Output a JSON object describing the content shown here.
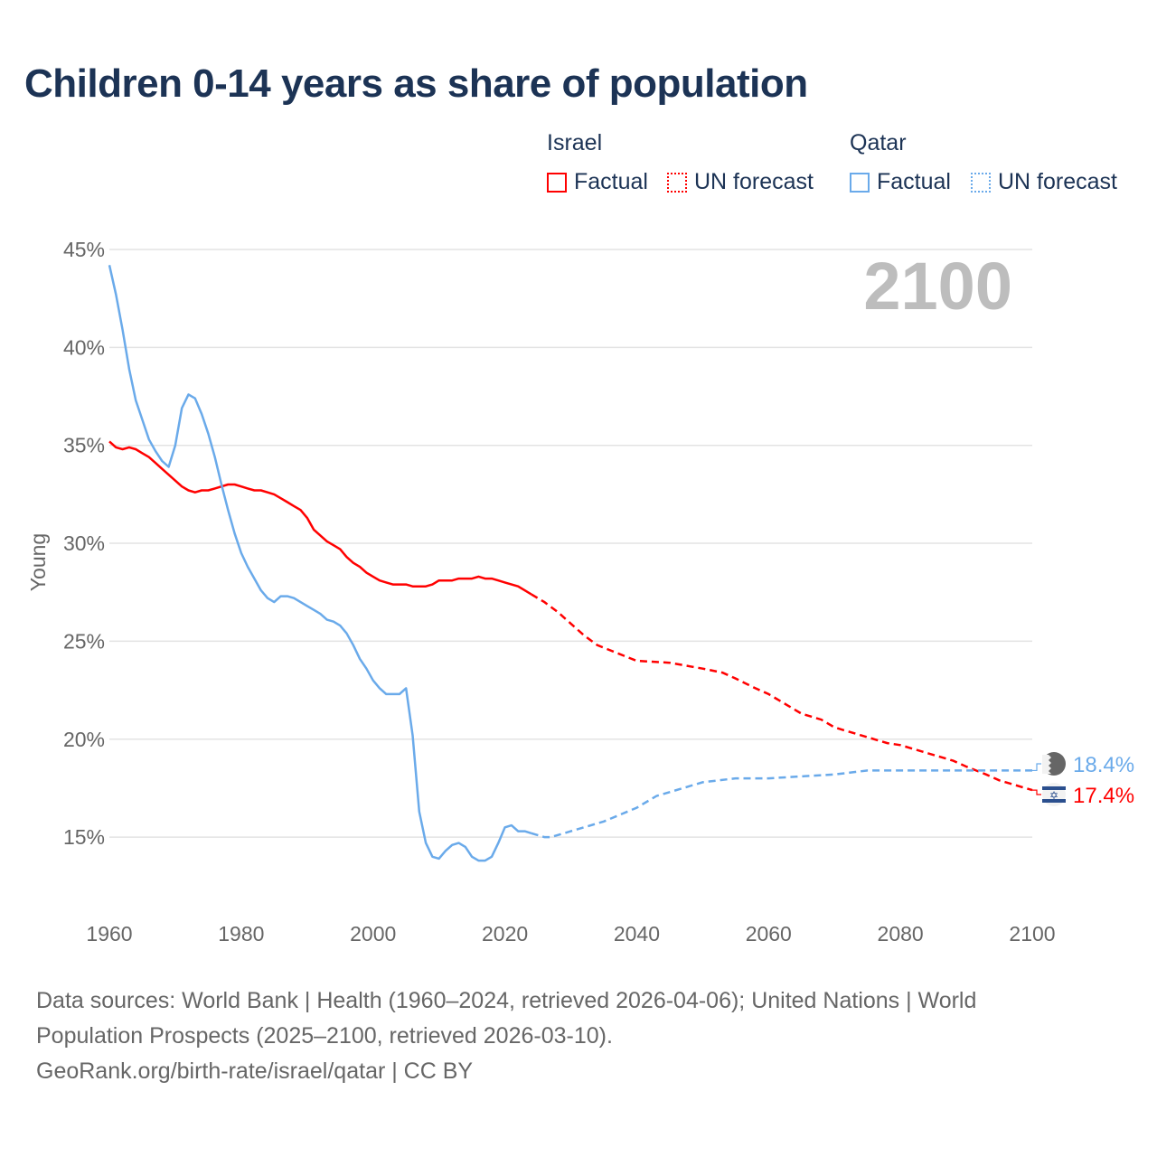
{
  "title": "Children 0-14 years as share of population",
  "legend": {
    "groups": [
      {
        "name": "Israel",
        "color": "#ff0000",
        "items": [
          "Factual",
          "UN forecast"
        ]
      },
      {
        "name": "Qatar",
        "color": "#6aaaea",
        "items": [
          "Factual",
          "UN forecast"
        ]
      }
    ]
  },
  "year_display": "2100",
  "footer": {
    "line1": "Data sources: World Bank | Health (1960–2024, retrieved 2026-04-06); United Nations | World",
    "line2": "Population Prospects (2025–2100, retrieved 2026-03-10).",
    "line3": "GeoRank.org/birth-rate/israel/qatar | CC BY"
  },
  "chart_data": {
    "type": "line",
    "title": "Children 0-14 years as share of population",
    "xlabel": "",
    "ylabel": "Young",
    "xlim": [
      1960,
      2100
    ],
    "ylim": [
      12,
      45
    ],
    "x_ticks": [
      1960,
      1980,
      2000,
      2020,
      2040,
      2060,
      2080,
      2100
    ],
    "y_ticks": [
      15,
      20,
      25,
      30,
      35,
      40,
      45
    ],
    "y_tick_labels": [
      "15%",
      "20%",
      "25%",
      "30%",
      "35%",
      "40%",
      "45%"
    ],
    "grid": true,
    "legend_position": "top-right",
    "series": [
      {
        "name": "Israel",
        "color": "#ff0000",
        "end_label": "17.4%",
        "flag": "israel-flag",
        "factual_start": 1960,
        "factual": [
          35.2,
          34.9,
          34.8,
          34.9,
          34.8,
          34.6,
          34.4,
          34.1,
          33.8,
          33.5,
          33.2,
          32.9,
          32.7,
          32.6,
          32.7,
          32.7,
          32.8,
          32.9,
          33.0,
          33.0,
          32.9,
          32.8,
          32.7,
          32.7,
          32.6,
          32.5,
          32.3,
          32.1,
          31.9,
          31.7,
          31.3,
          30.7,
          30.4,
          30.1,
          29.9,
          29.7,
          29.3,
          29.0,
          28.8,
          28.5,
          28.3,
          28.1,
          28.0,
          27.9,
          27.9,
          27.9,
          27.8,
          27.8,
          27.8,
          27.9,
          28.1,
          28.1,
          28.1,
          28.2,
          28.2,
          28.2,
          28.3,
          28.2,
          28.2,
          28.1,
          28.0,
          27.9,
          27.8,
          27.6,
          27.4
        ],
        "forecast": [
          [
            2024,
            27.4
          ],
          [
            2026,
            27.0
          ],
          [
            2028,
            26.5
          ],
          [
            2030,
            25.9
          ],
          [
            2032,
            25.3
          ],
          [
            2034,
            24.8
          ],
          [
            2037,
            24.4
          ],
          [
            2040,
            24.0
          ],
          [
            2045,
            23.9
          ],
          [
            2050,
            23.6
          ],
          [
            2053,
            23.4
          ],
          [
            2055,
            23.1
          ],
          [
            2058,
            22.6
          ],
          [
            2060,
            22.3
          ],
          [
            2063,
            21.7
          ],
          [
            2065,
            21.3
          ],
          [
            2068,
            21.0
          ],
          [
            2070,
            20.6
          ],
          [
            2075,
            20.1
          ],
          [
            2078,
            19.8
          ],
          [
            2080,
            19.7
          ],
          [
            2083,
            19.4
          ],
          [
            2088,
            18.9
          ],
          [
            2090,
            18.6
          ],
          [
            2093,
            18.2
          ],
          [
            2095,
            17.9
          ],
          [
            2100,
            17.4
          ]
        ]
      },
      {
        "name": "Qatar",
        "color": "#6aaaea",
        "end_label": "18.4%",
        "flag": "qatar-flag",
        "factual_start": 1960,
        "factual": [
          44.2,
          42.7,
          40.9,
          38.9,
          37.3,
          36.3,
          35.3,
          34.7,
          34.2,
          33.9,
          35.0,
          36.9,
          37.6,
          37.4,
          36.6,
          35.6,
          34.4,
          33.0,
          31.7,
          30.5,
          29.5,
          28.8,
          28.2,
          27.6,
          27.2,
          27.0,
          27.3,
          27.3,
          27.2,
          27.0,
          26.8,
          26.6,
          26.4,
          26.1,
          26.0,
          25.8,
          25.4,
          24.8,
          24.1,
          23.6,
          23.0,
          22.6,
          22.3,
          22.3,
          22.3,
          22.6,
          20.2,
          16.3,
          14.7,
          14.0,
          13.9,
          14.3,
          14.6,
          14.7,
          14.5,
          14.0,
          13.8,
          13.8,
          14.0,
          14.7,
          15.5,
          15.6,
          15.3,
          15.3,
          15.2
        ],
        "forecast": [
          [
            2024,
            15.2
          ],
          [
            2026,
            15.0
          ],
          [
            2027,
            15.0
          ],
          [
            2030,
            15.3
          ],
          [
            2035,
            15.8
          ],
          [
            2040,
            16.5
          ],
          [
            2043,
            17.1
          ],
          [
            2045,
            17.3
          ],
          [
            2050,
            17.8
          ],
          [
            2055,
            18.0
          ],
          [
            2060,
            18.0
          ],
          [
            2065,
            18.1
          ],
          [
            2070,
            18.2
          ],
          [
            2075,
            18.4
          ],
          [
            2080,
            18.4
          ],
          [
            2090,
            18.4
          ],
          [
            2100,
            18.4
          ]
        ]
      }
    ]
  }
}
